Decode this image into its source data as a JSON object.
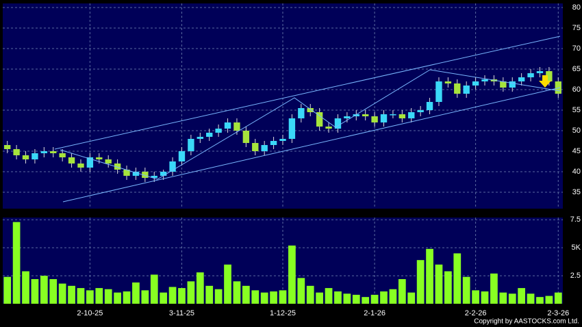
{
  "chart_data": {
    "type": "candlestick",
    "categories": [
      null,
      null,
      null,
      null,
      null,
      null,
      null,
      null,
      null,
      "2-10-25",
      null,
      null,
      null,
      null,
      null,
      null,
      null,
      null,
      null,
      "3-11-25",
      null,
      null,
      null,
      null,
      null,
      null,
      null,
      null,
      null,
      null,
      "1-12-25",
      null,
      null,
      null,
      null,
      null,
      null,
      null,
      null,
      null,
      "2-1-26",
      null,
      null,
      null,
      null,
      null,
      null,
      null,
      null,
      null,
      null,
      "2-2-26",
      null,
      null,
      null,
      null,
      null,
      null,
      null,
      null,
      "2-3-26"
    ],
    "open": [
      46.5,
      45.5,
      44,
      43,
      44.5,
      45,
      44.5,
      43.5,
      42,
      41,
      43.5,
      43,
      42,
      40.5,
      39,
      40,
      38.5,
      39,
      40,
      42.5,
      45,
      48,
      48.5,
      49.5,
      50.5,
      52,
      50,
      47,
      45,
      46.5,
      47.5,
      48,
      53,
      55.5,
      54.5,
      51,
      50.5,
      53,
      53.5,
      54,
      53.5,
      52,
      54,
      54,
      53,
      54.5,
      55,
      57,
      62,
      61.5,
      59,
      61,
      62,
      62.5,
      62,
      60.5,
      62,
      63,
      64,
      64.5,
      62
    ],
    "high": [
      47.5,
      46.5,
      45,
      45.5,
      46,
      46,
      45.5,
      44.5,
      43,
      44.5,
      44.5,
      44,
      43,
      41.5,
      41,
      41,
      40,
      40.5,
      43.5,
      46,
      49,
      49.5,
      50.5,
      51.5,
      53,
      53,
      51,
      48,
      47.5,
      48.5,
      49,
      54,
      56.5,
      56.5,
      55.5,
      52,
      54,
      54.5,
      55,
      55,
      54.5,
      55,
      55,
      55,
      55.5,
      56,
      58,
      63,
      63,
      62.5,
      62,
      63,
      63.5,
      63.5,
      63,
      63,
      64,
      65,
      65.5,
      65.5,
      63
    ],
    "low": [
      44.5,
      43,
      42,
      42,
      43.5,
      43.5,
      42.5,
      41,
      40,
      40,
      42,
      41,
      39.5,
      38,
      38,
      37.5,
      37.5,
      38,
      39,
      41.5,
      44,
      47,
      47.5,
      48.5,
      49.5,
      49,
      46,
      44,
      44,
      45.5,
      46.5,
      47,
      52,
      53.5,
      50,
      49.5,
      49.5,
      52,
      52.5,
      52.5,
      51,
      51,
      53,
      52,
      52,
      53.5,
      54,
      56,
      60.5,
      58,
      58,
      60,
      61,
      61,
      59.5,
      59.5,
      61,
      62,
      63,
      61,
      58
    ],
    "close": [
      45.5,
      44,
      43,
      44.5,
      45,
      44.5,
      43.5,
      42,
      41,
      43.5,
      43,
      42,
      40.5,
      39,
      40,
      38.5,
      39,
      40,
      42.5,
      45,
      48,
      48.5,
      49.5,
      50.5,
      52,
      50,
      47,
      45,
      46.5,
      47.5,
      48,
      53,
      55.5,
      54.5,
      51,
      50.5,
      53,
      53.5,
      54,
      53.5,
      52,
      54,
      54,
      53,
      54.5,
      55,
      57,
      62,
      61.5,
      59,
      61,
      62,
      62.5,
      62,
      60.5,
      62,
      63,
      64,
      64.5,
      62,
      59
    ],
    "up_color": "#3ad8f8",
    "down_color": "#a6e43c",
    "ylim": [
      31,
      81
    ],
    "yticks": [
      35,
      40,
      45,
      50,
      55,
      60,
      65,
      70,
      75,
      80
    ],
    "grid": true,
    "volume": {
      "color": "#88ff22",
      "ylim": [
        0,
        7.7
      ],
      "yticks": [
        2.5,
        {
          "value": 5,
          "label": "5K"
        },
        7.5
      ],
      "values": [
        2.4,
        7.3,
        2.9,
        2.2,
        2.5,
        2.2,
        1.8,
        1.6,
        1.4,
        1.2,
        1.4,
        1.3,
        1.0,
        1.1,
        1.9,
        1.2,
        2.6,
        1.0,
        1.5,
        1.4,
        2.0,
        2.8,
        1.6,
        1.3,
        3.5,
        2.0,
        1.6,
        1.2,
        1.0,
        1.1,
        1.2,
        5.2,
        2.3,
        1.6,
        1.0,
        1.4,
        1.1,
        0.9,
        0.8,
        0.6,
        0.8,
        1.1,
        1.3,
        2.2,
        1.0,
        3.9,
        4.9,
        3.5,
        2.9,
        4.5,
        2.4,
        1.2,
        1.1,
        2.7,
        1.0,
        0.9,
        1.4,
        0.9,
        0.6,
        0.7,
        1.0
      ]
    }
  },
  "footer": "Copyright by AASTOCKS.com Ltd."
}
